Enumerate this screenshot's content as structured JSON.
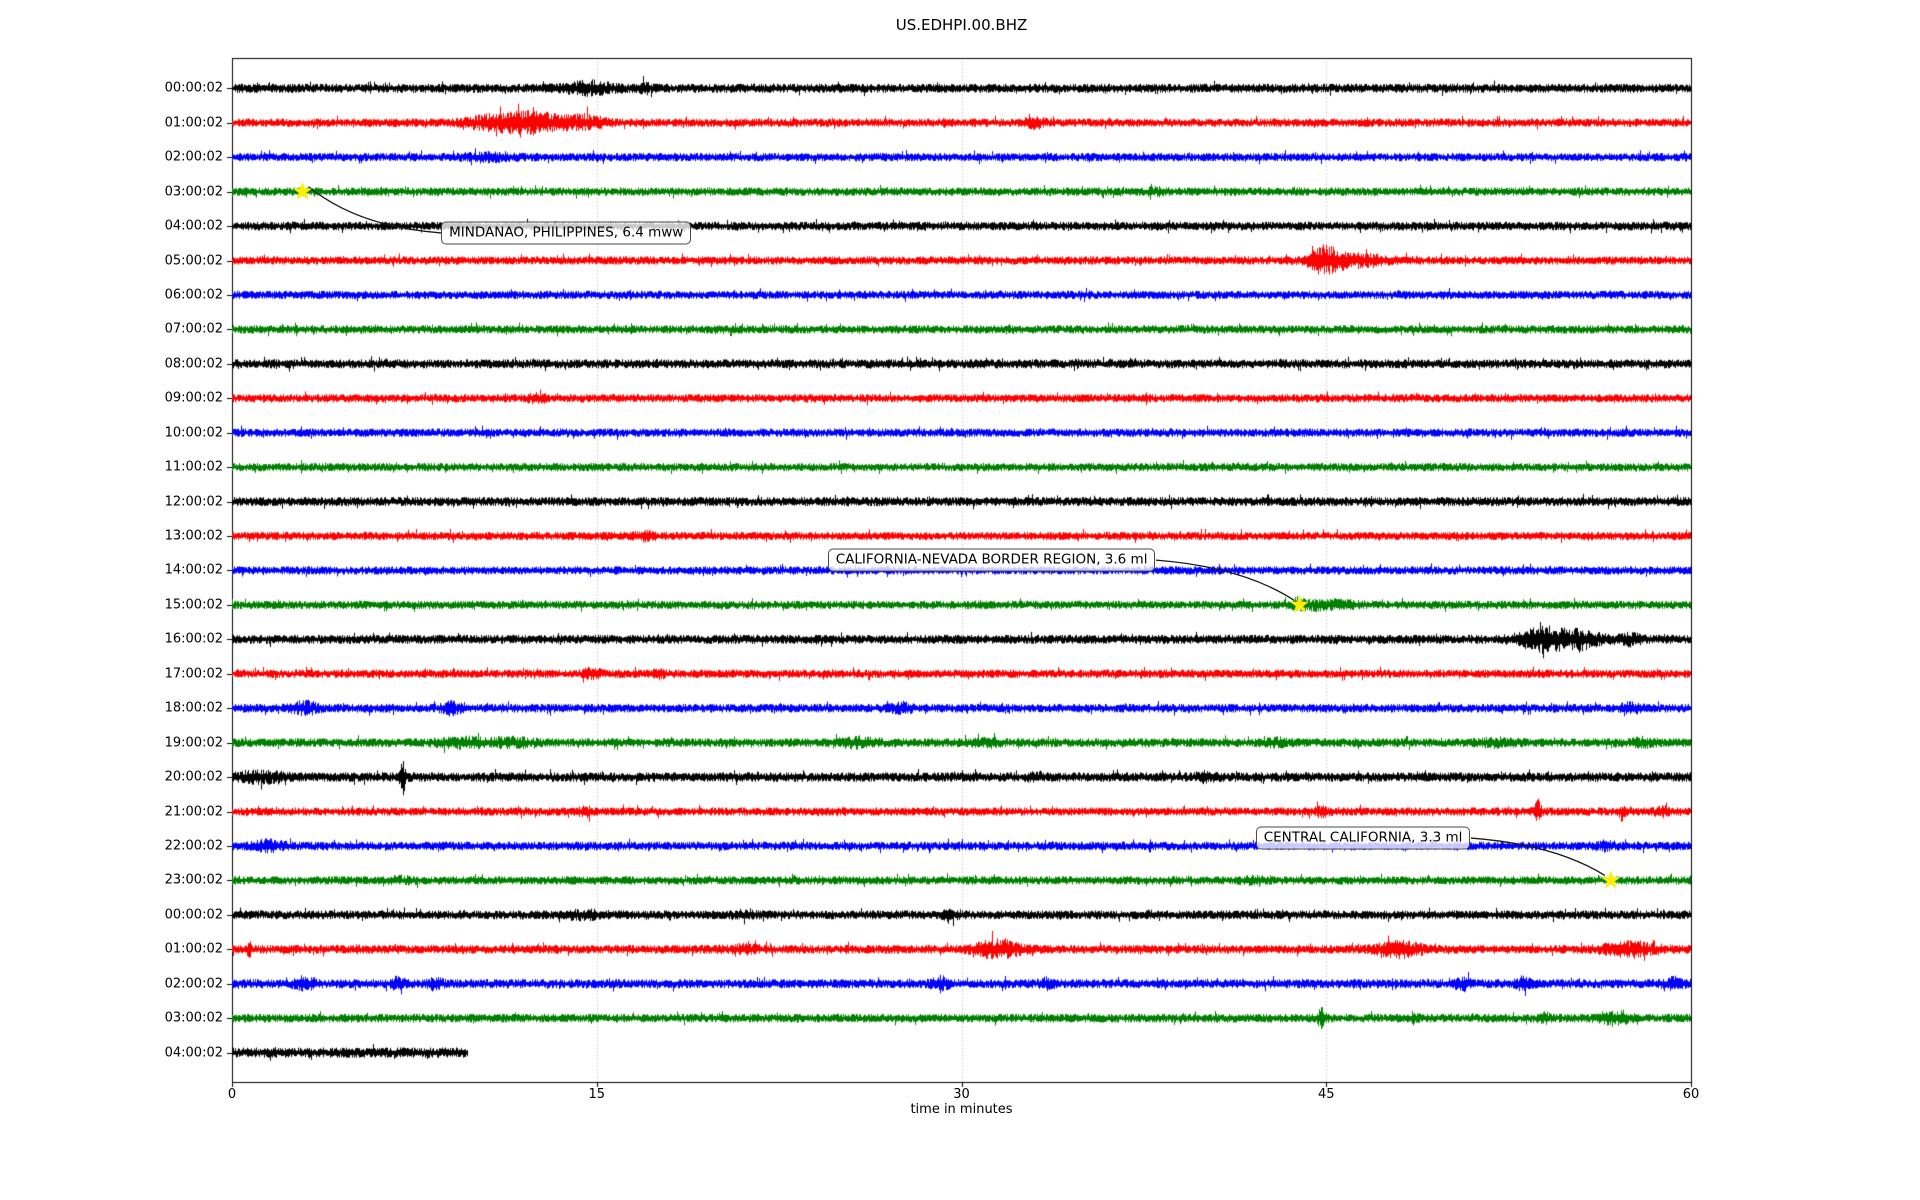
{
  "chart_data": {
    "type": "line",
    "subtype": "seismogram-helicorder",
    "title": "US.EDHPI.00.BHZ",
    "xlabel": "time in minutes",
    "xlim": [
      0,
      60
    ],
    "xticks": [
      "0",
      "15",
      "30",
      "45",
      "60"
    ],
    "grid": {
      "vertical_at_minutes": [
        15,
        30,
        45
      ],
      "style": "dotted",
      "color": "#b0b0b0"
    },
    "legend": "none",
    "colors": {
      "black": "#000000",
      "red": "#ff0000",
      "blue": "#0000ff",
      "green": "#008000",
      "star": "#ffee00",
      "arrow": "#1a1a1a"
    },
    "rows": [
      {
        "label": "00:00:02",
        "color": "black",
        "duration_min": 60,
        "amp": 4.6,
        "bursts": [
          [
            14.7,
            0.9,
            2.0
          ],
          [
            16.9,
            0.3,
            1.8
          ]
        ]
      },
      {
        "label": "01:00:02",
        "color": "red",
        "duration_min": 60,
        "amp": 4.2,
        "bursts": [
          [
            10.5,
            1.0,
            1.9
          ],
          [
            12.3,
            1.4,
            3.0
          ],
          [
            14.6,
            0.8,
            2.2
          ],
          [
            33.0,
            0.4,
            1.8
          ]
        ]
      },
      {
        "label": "02:00:02",
        "color": "blue",
        "duration_min": 60,
        "amp": 4.2,
        "bursts": [
          [
            10.5,
            1.0,
            1.5
          ]
        ]
      },
      {
        "label": "03:00:02",
        "color": "green",
        "duration_min": 60,
        "amp": 4.2,
        "bursts": [
          [
            38.0,
            0.5,
            1.4
          ]
        ]
      },
      {
        "label": "04:00:02",
        "color": "black",
        "duration_min": 60,
        "amp": 4.4,
        "bursts": []
      },
      {
        "label": "05:00:02",
        "color": "red",
        "duration_min": 60,
        "amp": 4.2,
        "bursts": [
          [
            44.9,
            0.6,
            3.4
          ],
          [
            46.2,
            1.4,
            2.1
          ]
        ]
      },
      {
        "label": "06:00:02",
        "color": "blue",
        "duration_min": 60,
        "amp": 4.2,
        "bursts": []
      },
      {
        "label": "07:00:02",
        "color": "green",
        "duration_min": 60,
        "amp": 4.2,
        "bursts": []
      },
      {
        "label": "08:00:02",
        "color": "black",
        "duration_min": 60,
        "amp": 4.6,
        "bursts": []
      },
      {
        "label": "09:00:02",
        "color": "red",
        "duration_min": 60,
        "amp": 4.2,
        "bursts": [
          [
            12.5,
            0.4,
            1.6
          ]
        ]
      },
      {
        "label": "10:00:02",
        "color": "blue",
        "duration_min": 60,
        "amp": 4.2,
        "bursts": []
      },
      {
        "label": "11:00:02",
        "color": "green",
        "duration_min": 60,
        "amp": 4.2,
        "bursts": []
      },
      {
        "label": "12:00:02",
        "color": "black",
        "duration_min": 60,
        "amp": 4.6,
        "bursts": []
      },
      {
        "label": "13:00:02",
        "color": "red",
        "duration_min": 60,
        "amp": 4.2,
        "bursts": [
          [
            17.0,
            0.4,
            1.6
          ]
        ]
      },
      {
        "label": "14:00:02",
        "color": "blue",
        "duration_min": 60,
        "amp": 4.2,
        "bursts": []
      },
      {
        "label": "15:00:02",
        "color": "green",
        "duration_min": 60,
        "amp": 4.2,
        "bursts": [
          [
            44.3,
            0.8,
            1.8
          ],
          [
            45.6,
            0.8,
            1.5
          ]
        ]
      },
      {
        "label": "16:00:02",
        "color": "black",
        "duration_min": 60,
        "amp": 4.6,
        "bursts": [
          [
            54.0,
            1.1,
            3.0
          ],
          [
            55.6,
            0.8,
            2.2
          ],
          [
            57.5,
            0.5,
            1.8
          ]
        ]
      },
      {
        "label": "17:00:02",
        "color": "red",
        "duration_min": 60,
        "amp": 4.2,
        "bursts": [
          [
            14.8,
            0.4,
            1.8
          ],
          [
            17.5,
            0.3,
            1.6
          ]
        ]
      },
      {
        "label": "18:00:02",
        "color": "blue",
        "duration_min": 60,
        "amp": 4.4,
        "bursts": [
          [
            3.0,
            0.5,
            2.0
          ],
          [
            9.0,
            0.4,
            2.0
          ],
          [
            27.5,
            0.4,
            1.8
          ],
          [
            57.5,
            0.4,
            1.7
          ]
        ]
      },
      {
        "label": "19:00:02",
        "color": "green",
        "duration_min": 60,
        "amp": 4.4,
        "bursts": [
          [
            9.5,
            1.1,
            1.7
          ],
          [
            11.5,
            0.8,
            1.6
          ],
          [
            25.8,
            0.8,
            1.7
          ],
          [
            31.0,
            0.6,
            1.5
          ],
          [
            43.0,
            0.5,
            1.5
          ],
          [
            52.0,
            0.7,
            1.5
          ],
          [
            58.0,
            0.5,
            1.6
          ]
        ]
      },
      {
        "label": "20:00:02",
        "color": "black",
        "duration_min": 60,
        "amp": 4.8,
        "bursts": [
          [
            1.2,
            1.0,
            1.7
          ],
          [
            7.0,
            0.12,
            4.2
          ],
          [
            33.0,
            0.3,
            1.6
          ],
          [
            40.0,
            0.4,
            1.5
          ]
        ]
      },
      {
        "label": "21:00:02",
        "color": "red",
        "duration_min": 60,
        "amp": 4.2,
        "bursts": [
          [
            14.5,
            0.3,
            1.7
          ],
          [
            44.8,
            0.3,
            1.7
          ],
          [
            53.7,
            0.15,
            3.2
          ],
          [
            57.2,
            0.2,
            1.9
          ],
          [
            58.8,
            0.3,
            1.7
          ]
        ]
      },
      {
        "label": "22:00:02",
        "color": "blue",
        "duration_min": 60,
        "amp": 4.4,
        "bursts": [
          [
            1.5,
            0.6,
            1.8
          ],
          [
            56.5,
            0.4,
            1.6
          ]
        ]
      },
      {
        "label": "23:00:02",
        "color": "green",
        "duration_min": 60,
        "amp": 4.2,
        "bursts": [
          [
            7.0,
            0.5,
            1.4
          ],
          [
            42.0,
            0.5,
            1.4
          ]
        ]
      },
      {
        "label": "00:00:02",
        "color": "black",
        "duration_min": 60,
        "amp": 4.5,
        "bursts": [
          [
            14.5,
            0.8,
            1.5
          ],
          [
            21.0,
            0.5,
            1.4
          ],
          [
            29.5,
            0.3,
            1.6
          ]
        ]
      },
      {
        "label": "01:00:02",
        "color": "red",
        "duration_min": 60,
        "amp": 4.4,
        "bursts": [
          [
            0.7,
            0.1,
            2.0
          ],
          [
            21.0,
            0.8,
            1.5
          ],
          [
            31.5,
            0.9,
            2.6
          ],
          [
            48.0,
            0.9,
            2.4
          ],
          [
            57.5,
            1.1,
            2.2
          ]
        ]
      },
      {
        "label": "02:00:02",
        "color": "blue",
        "duration_min": 60,
        "amp": 4.6,
        "bursts": [
          [
            3.0,
            0.4,
            2.0
          ],
          [
            6.8,
            0.3,
            1.8
          ],
          [
            8.3,
            0.3,
            1.8
          ],
          [
            29.1,
            0.3,
            2.2
          ],
          [
            33.5,
            0.3,
            1.8
          ],
          [
            50.6,
            0.3,
            1.9
          ],
          [
            53.1,
            0.3,
            1.9
          ],
          [
            59.3,
            0.4,
            1.8
          ]
        ]
      },
      {
        "label": "03:00:02",
        "color": "green",
        "duration_min": 60,
        "amp": 4.4,
        "bursts": [
          [
            44.8,
            0.15,
            3.0
          ],
          [
            48.6,
            0.2,
            1.8
          ],
          [
            54.0,
            0.3,
            1.6
          ],
          [
            56.8,
            0.6,
            2.0
          ]
        ]
      },
      {
        "label": "04:00:02",
        "color": "black",
        "duration_min": 9.7,
        "amp": 5.2,
        "bursts": []
      }
    ],
    "events": [
      {
        "row": 3,
        "time_min": 2.9,
        "label": "MINDANAO, PHILIPPINES, 6.4 mww",
        "text_time_min": 8.6,
        "text_row": 4.2
      },
      {
        "row": 15,
        "time_min": 43.9,
        "label": "CALIFORNIA-NEVADA BORDER REGION, 3.6 ml",
        "text_time_min": 24.5,
        "text_row": 13.7
      },
      {
        "row": 23,
        "time_min": 56.7,
        "label": "CENTRAL CALIFORNIA, 3.3 ml",
        "text_time_min": 42.1,
        "text_row": 21.77
      }
    ]
  }
}
